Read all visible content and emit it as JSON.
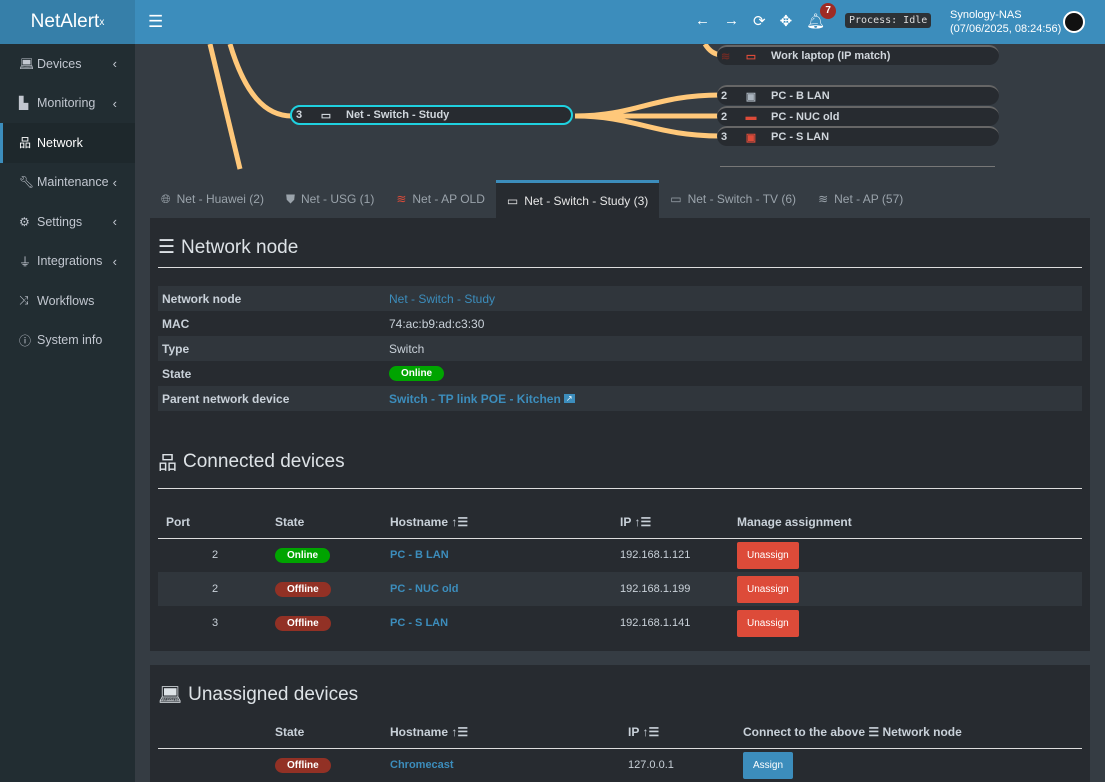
{
  "app": {
    "logo_main": "NetAlert",
    "logo_sup": "x"
  },
  "header": {
    "notifications": "7",
    "process": "Process: Idle",
    "server_name": "Synology-NAS",
    "server_time": "(07/06/2025, 08:24:56)"
  },
  "sidebar": {
    "items": [
      {
        "label": "Devices",
        "icon": "laptop-icon"
      },
      {
        "label": "Monitoring",
        "icon": "chart-icon"
      },
      {
        "label": "Network",
        "icon": "network-icon"
      },
      {
        "label": "Maintenance",
        "icon": "wrench-icon"
      },
      {
        "label": "Settings",
        "icon": "gear-icon"
      },
      {
        "label": "Integrations",
        "icon": "plug-icon"
      },
      {
        "label": "Workflows",
        "icon": "shuffle-icon"
      },
      {
        "label": "System info",
        "icon": "info-icon"
      }
    ]
  },
  "tree": {
    "root": {
      "port": "3",
      "label": "Net - Switch - Study"
    },
    "top": {
      "label": "Work laptop (IP match)"
    },
    "children": [
      {
        "port": "2",
        "label": "PC - B LAN",
        "color": "#aab4be"
      },
      {
        "port": "2",
        "label": "PC - NUC old",
        "color": "#dd4b39"
      },
      {
        "port": "3",
        "label": "PC - S LAN",
        "color": "#dd4b39"
      }
    ],
    "link_color": "#ffc87a"
  },
  "tabs": [
    {
      "label": "Net - Huawei (2)",
      "icon": "globe-icon"
    },
    {
      "label": "Net - USG (1)",
      "icon": "shield-icon"
    },
    {
      "label": "Net - AP OLD",
      "icon": "wifi-icon"
    },
    {
      "label": "Net - Switch - Study (3)",
      "icon": "switch-icon"
    },
    {
      "label": "Net - Switch - TV (6)",
      "icon": "switch-icon"
    },
    {
      "label": "Net - AP (57)",
      "icon": "wifi-icon"
    }
  ],
  "node": {
    "title": "Network node",
    "rows": {
      "node_label": "Network node",
      "node_value": "Net - Switch - Study",
      "mac_label": "MAC",
      "mac_value": "74:ac:b9:ad:c3:30",
      "type_label": "Type",
      "type_value": "Switch",
      "state_label": "State",
      "state_value": "Online",
      "parent_label": "Parent network device",
      "parent_value": "Switch - TP link POE - Kitchen"
    }
  },
  "connected": {
    "title": "Connected devices",
    "headers": {
      "port": "Port",
      "state": "State",
      "hostname": "Hostname",
      "ip": "IP",
      "manage": "Manage assignment"
    },
    "rows": [
      {
        "port": "2",
        "state": "Online",
        "hostname": "PC - B LAN",
        "ip": "192.168.1.121",
        "action": "Unassign"
      },
      {
        "port": "2",
        "state": "Offline",
        "hostname": "PC - NUC old",
        "ip": "192.168.1.199",
        "action": "Unassign"
      },
      {
        "port": "3",
        "state": "Offline",
        "hostname": "PC - S LAN",
        "ip": "192.168.1.141",
        "action": "Unassign"
      }
    ]
  },
  "unassigned": {
    "title": "Unassigned devices",
    "headers": {
      "state": "State",
      "hostname": "Hostname",
      "ip": "IP",
      "connect_pre": "Connect to the above",
      "connect_post": "Network node"
    },
    "rows": [
      {
        "state": "Offline",
        "hostname": "Chromecast",
        "ip": "127.0.0.1",
        "action": "Assign"
      }
    ]
  }
}
